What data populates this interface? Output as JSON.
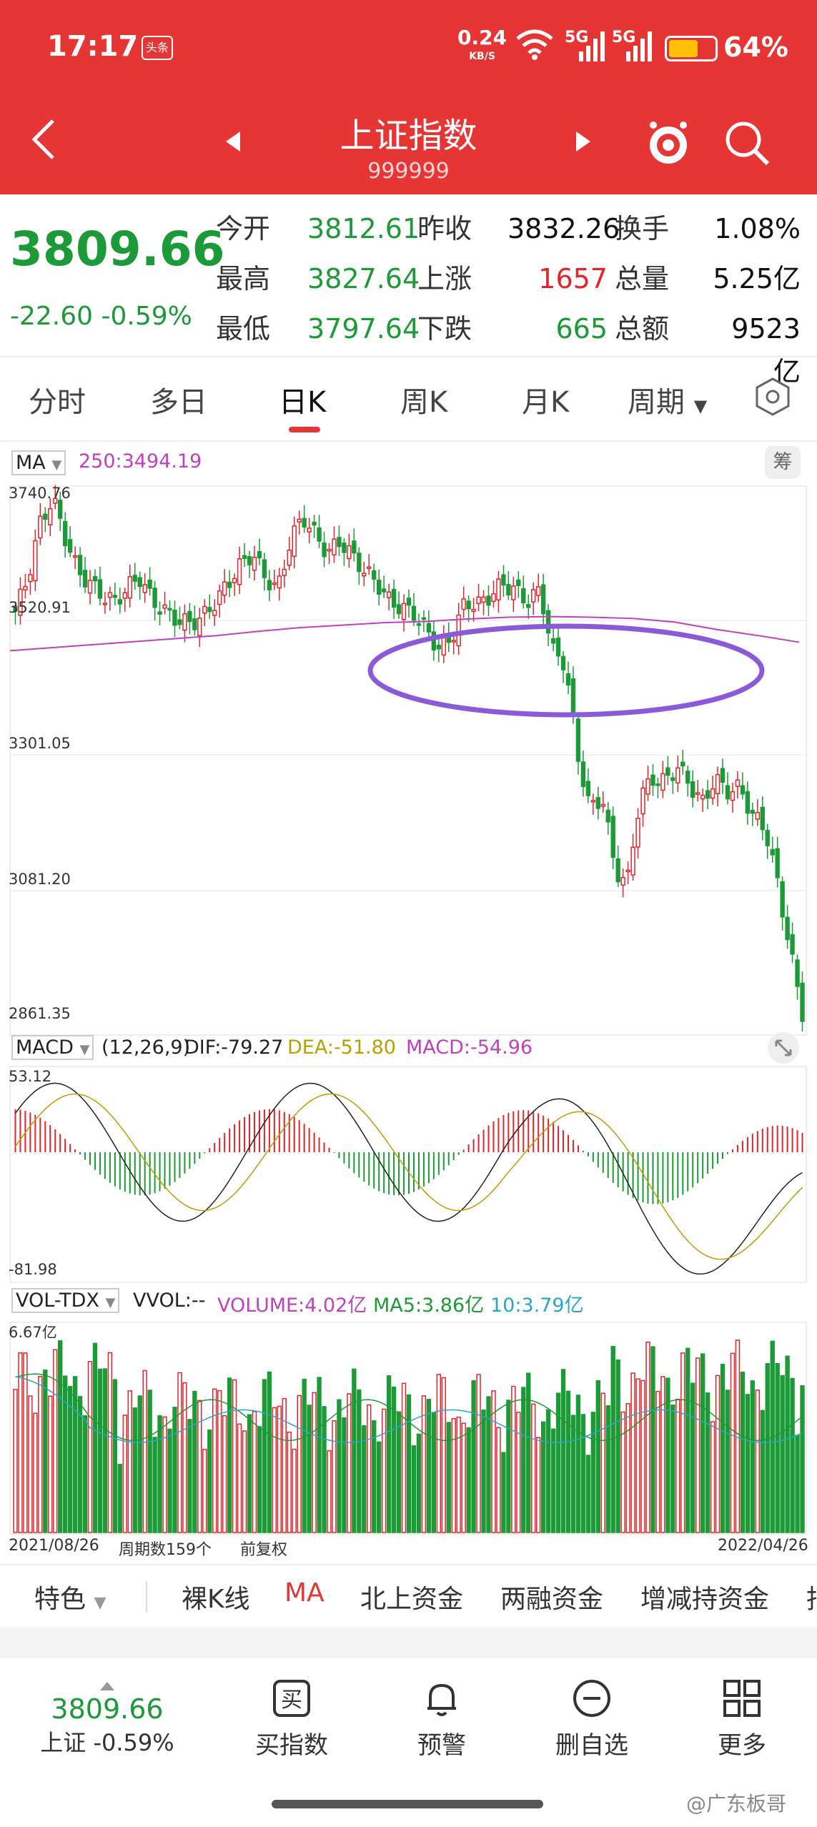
{
  "status": {
    "time": "17:17",
    "app_badge": "头条",
    "net_speed": "0.24",
    "net_unit": "KB/S",
    "sig1": "5G",
    "sig2": "5G",
    "battery": "64%",
    "battery_level": 0.64
  },
  "nav": {
    "title": "上证指数",
    "code": "999999"
  },
  "quote": {
    "price": "3809.66",
    "change": "-22.60",
    "change_pct": "-0.59%",
    "cells": [
      {
        "label": "今开",
        "value": "3812.61",
        "vcolor": "green"
      },
      {
        "label": "昨收",
        "value": "3832.26",
        "vcolor": "black"
      },
      {
        "label": "换手",
        "value": "1.08%",
        "vcolor": "black"
      },
      {
        "label": "最高",
        "value": "3827.64",
        "vcolor": "green"
      },
      {
        "label": "上涨",
        "value": "1657",
        "vcolor": "red"
      },
      {
        "label": "总量",
        "value": "5.25亿",
        "vcolor": "black"
      },
      {
        "label": "最低",
        "value": "3797.64",
        "vcolor": "green"
      },
      {
        "label": "下跌",
        "value": "665",
        "vcolor": "green"
      },
      {
        "label": "总额",
        "value": "9523亿",
        "vcolor": "black"
      }
    ]
  },
  "tabs": [
    "分时",
    "多日",
    "日K",
    "周K",
    "月K",
    "周期"
  ],
  "tab_active": "日K",
  "chart": {
    "ma_label": "MA",
    "ma250": "250:3494.19",
    "chip_label": "筹",
    "price_axis": [
      "3740.76",
      "3520.91",
      "3301.05",
      "3081.20",
      "2861.35"
    ],
    "macd_label": "MACD",
    "macd_params": "(12,26,9)",
    "dif": "DIF:-79.27",
    "dea": "DEA:-51.80",
    "macd": "MACD:-54.96",
    "macd_axis": [
      "53.12",
      "-81.98"
    ],
    "vol_label": "VOL-TDX",
    "vvol": "VVOL:--",
    "volume": "VOLUME:4.02亿",
    "ma5": "MA5:3.86亿",
    "ma10": "10:3.79亿",
    "vol_axis": "6.67亿",
    "date_start": "2021/08/26",
    "period_count": "周期数159个",
    "adjust": "前复权",
    "date_end": "2022/04/26"
  },
  "toolbar": [
    "特色",
    "裸K线",
    "MA",
    "北上资金",
    "两融资金",
    "增减持资金",
    "指"
  ],
  "bottom": {
    "price": "3809.66",
    "index_label": "上证 -0.59%",
    "items": [
      "买指数",
      "预警",
      "删自选",
      "更多"
    ],
    "buy_glyph": "买"
  },
  "watermark": "@广东板哥",
  "chart_data": {
    "type": "candlestick",
    "x_range": [
      "2021/08/26",
      "2022/04/26"
    ],
    "periods": 159,
    "y_ticks": [
      3740.76,
      3520.91,
      3301.05,
      3081.2,
      2861.35
    ],
    "close_path": [
      3545,
      3600,
      3690,
      3730,
      3665,
      3610,
      3590,
      3570,
      3560,
      3585,
      3600,
      3560,
      3545,
      3530,
      3525,
      3535,
      3560,
      3590,
      3620,
      3640,
      3600,
      3580,
      3660,
      3700,
      3670,
      3640,
      3660,
      3635,
      3610,
      3590,
      3560,
      3550,
      3540,
      3510,
      3480,
      3505,
      3560,
      3555,
      3570,
      3590,
      3580,
      3560,
      3580,
      3480,
      3460,
      3310,
      3220,
      3240,
      3120,
      3100,
      3240,
      3270,
      3265,
      3290,
      3260,
      3230,
      3270,
      3250,
      3255,
      3210,
      3190,
      3100,
      2990,
      2886
    ],
    "ma250_path": [
      3480,
      3485,
      3490,
      3495,
      3500,
      3505,
      3512,
      3518,
      3522,
      3526,
      3528,
      3532,
      3535,
      3536,
      3535,
      3533,
      3527,
      3515,
      3505,
      3494
    ],
    "macd": {
      "dif": -79.27,
      "dea": -51.8,
      "macd": -54.96,
      "range": [
        -81.98,
        53.12
      ]
    },
    "volume": {
      "current": "4.02亿",
      "ma5": "3.86亿",
      "ma10": "3.79亿",
      "max": "6.67亿"
    }
  }
}
